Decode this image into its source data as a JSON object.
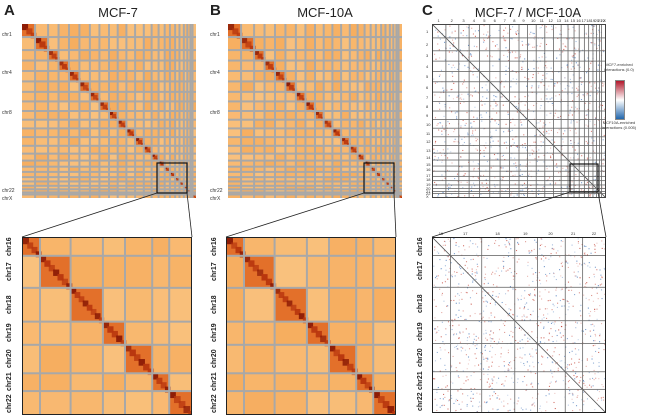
{
  "panels": [
    {
      "letter": "A",
      "title": "MCF-7",
      "overview_labels": [
        "chr1",
        "chr4",
        "chr8",
        "chr22",
        "chrX"
      ],
      "zoom_labels": [
        "chr16",
        "chr17",
        "chr18",
        "chr19",
        "chr20",
        "chr21",
        "chr22"
      ]
    },
    {
      "letter": "B",
      "title": "MCF-10A",
      "overview_labels": [
        "chr1",
        "chr4",
        "chr8",
        "chr22",
        "chrX"
      ],
      "zoom_labels": [
        "chr16",
        "chr17",
        "chr18",
        "chr19",
        "chr20",
        "chr21",
        "chr22"
      ]
    },
    {
      "letter": "C",
      "title": "MCF-7 / MCF-10A",
      "top_numbers": [
        "1",
        "2",
        "3",
        "4",
        "5",
        "6",
        "7",
        "8",
        "9",
        "10",
        "11",
        "12",
        "13",
        "14",
        "15",
        "16",
        "17",
        "18",
        "19",
        "20",
        "21",
        "22",
        "X"
      ],
      "side_numbers": [
        "1",
        "2",
        "3",
        "4",
        "5",
        "6",
        "7",
        "8",
        "9",
        "10",
        "11",
        "12",
        "13",
        "14",
        "15",
        "16",
        "17",
        "18",
        "19",
        "20",
        "21",
        "22",
        "X"
      ],
      "zoom_top_numbers": [
        "16",
        "17",
        "18",
        "19",
        "20",
        "21",
        "22"
      ],
      "zoom_labels": [
        "chr16",
        "chr17",
        "chr18",
        "chr19",
        "chr20",
        "chr21",
        "chr22"
      ],
      "legend": {
        "top_text": "MCF7-enriched interactions (0.0)",
        "bottom_text": "MCF10A-enriched interactions (0.005)",
        "color_high": "#b2182b",
        "color_mid": "#ffffff",
        "color_low": "#2166ac"
      }
    }
  ],
  "colors": {
    "heat_base": "#f5a04a",
    "heat_light": "#f9c98e",
    "heat_dark": "#8b1a05",
    "gap": "#a8a8a8"
  }
}
